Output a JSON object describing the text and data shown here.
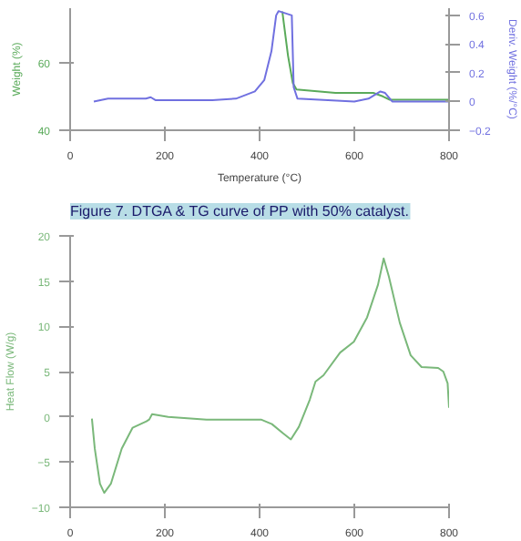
{
  "chart_data": [
    {
      "type": "line",
      "xlabel": "Temperature (°C)",
      "ylabel": "Weight (%)",
      "y2label": "Deriv. Weight (%/°C)",
      "annotations": [
        "Figure 7. DTGA & TG curve of PP with 50% catalyst."
      ],
      "xlim": [
        0,
        800
      ],
      "xticks": [
        0,
        200,
        400,
        600,
        800
      ],
      "ylim": [
        40,
        76
      ],
      "yticks": [
        40,
        60
      ],
      "y2lim": [
        -0.2,
        0.65
      ],
      "y2ticks": [
        -0.2,
        0.0,
        0.2,
        0.4,
        0.6
      ],
      "grid": false,
      "series": [
        {
          "color": "#5aaa5a",
          "x": [
            448,
            460,
            470,
            478,
            560,
            640,
            660,
            675,
            800
          ],
          "values": [
            75,
            62,
            54,
            52,
            51,
            51,
            50,
            49,
            49
          ]
        },
        {
          "color": "#7070e0",
          "axis": "y2",
          "x": [
            50,
            80,
            160,
            170,
            180,
            300,
            350,
            390,
            410,
            425,
            435,
            440,
            468,
            472,
            480,
            600,
            630,
            655,
            665,
            680,
            800
          ],
          "values": [
            0.0,
            0.02,
            0.02,
            0.03,
            0.01,
            0.01,
            0.02,
            0.07,
            0.15,
            0.35,
            0.6,
            0.63,
            0.6,
            0.1,
            0.02,
            0.0,
            0.02,
            0.07,
            0.06,
            0.0,
            0.0
          ]
        }
      ]
    },
    {
      "type": "line",
      "ylabel": "Heat Flow (W/g)",
      "xlim": [
        0,
        800
      ],
      "xticks": [
        0,
        200,
        400,
        600,
        800
      ],
      "ylim": [
        -10,
        20
      ],
      "yticks": [
        -10,
        -5,
        0,
        5,
        10,
        15,
        20
      ],
      "grid": false,
      "series": [
        {
          "color": "#7ab87a",
          "x": [
            46,
            52,
            63,
            72,
            86,
            109,
            132,
            161,
            167,
            173,
            207,
            288,
            403,
            426,
            449,
            466,
            483,
            506,
            518,
            535,
            570,
            599,
            627,
            650,
            662,
            673,
            696,
            719,
            742,
            777,
            788,
            797,
            800
          ],
          "values": [
            -0.2,
            -3.5,
            -7.4,
            -8.4,
            -7.4,
            -3.5,
            -1.2,
            -0.5,
            -0.3,
            0.3,
            0,
            -0.3,
            -0.3,
            -0.8,
            -1.8,
            -2.5,
            -1.1,
            1.9,
            3.9,
            4.6,
            7.1,
            8.3,
            11,
            14.6,
            17.5,
            15.5,
            10.4,
            6.8,
            5.5,
            5.4,
            5,
            3.7,
            1
          ]
        }
      ]
    }
  ]
}
